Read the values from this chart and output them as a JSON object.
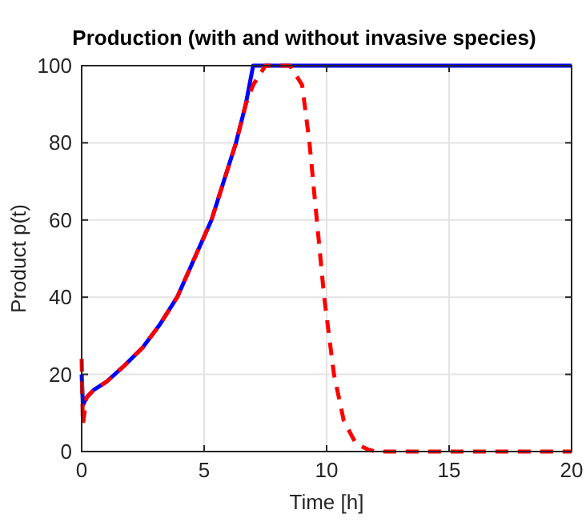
{
  "chart_data": {
    "type": "line",
    "title": "Production (with and without invasive species)",
    "xlabel": "Time [h]",
    "ylabel": "Product p(t)",
    "xlim": [
      0,
      20
    ],
    "ylim": [
      0,
      100
    ],
    "xticks": [
      0,
      5,
      10,
      15,
      20
    ],
    "yticks": [
      0,
      20,
      40,
      60,
      80,
      100
    ],
    "grid": true,
    "series": [
      {
        "color": "#0000ff",
        "line_style": "solid",
        "x": [
          0,
          0.05,
          0.2,
          0.5,
          1,
          1.7,
          2.5,
          3.2,
          3.9,
          4.6,
          5.3,
          5.8,
          6.3,
          6.7,
          7,
          10,
          15,
          17,
          20
        ],
        "values": [
          20,
          12,
          14,
          16,
          18,
          22,
          27,
          33,
          40,
          50,
          60,
          70,
          80,
          90,
          100,
          100,
          100,
          100,
          100
        ]
      },
      {
        "color": "#ff0000",
        "line_style": "dashed",
        "x": [
          0,
          0.05,
          0.2,
          0.5,
          1,
          1.7,
          2.5,
          3.2,
          3.9,
          4.6,
          5.3,
          5.8,
          6.3,
          6.7,
          7,
          7.5,
          8.5,
          9,
          9.3,
          9.6,
          9.9,
          10.3,
          10.7,
          11.2,
          11.7,
          12,
          15,
          20
        ],
        "values": [
          24,
          7,
          14,
          16,
          18,
          22,
          27,
          33,
          40,
          50,
          60,
          70,
          80,
          90,
          95,
          100,
          100,
          95,
          80,
          60,
          40,
          20,
          8,
          2,
          0.5,
          0,
          0,
          0
        ]
      }
    ]
  }
}
